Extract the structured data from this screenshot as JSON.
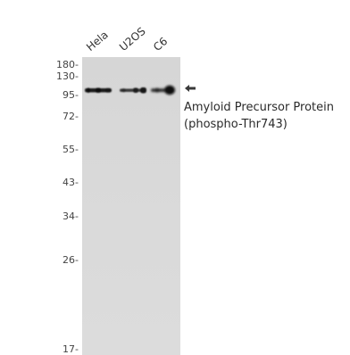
{
  "lanes": [
    {
      "label": "Hela"
    },
    {
      "label": "U2OS"
    },
    {
      "label": "C6"
    }
  ],
  "markers": [
    "180-",
    "130-",
    "95-",
    "72-",
    "55-",
    "43-",
    "34-",
    "26-",
    "17-"
  ],
  "target": {
    "line1": "Amyloid Precursor Protein",
    "line2": "(phospho-Thr743)"
  },
  "colors": {
    "membrane": "#d8d8d8",
    "band": "#141414"
  },
  "icons": {
    "pointer": "left-arrow-icon"
  }
}
